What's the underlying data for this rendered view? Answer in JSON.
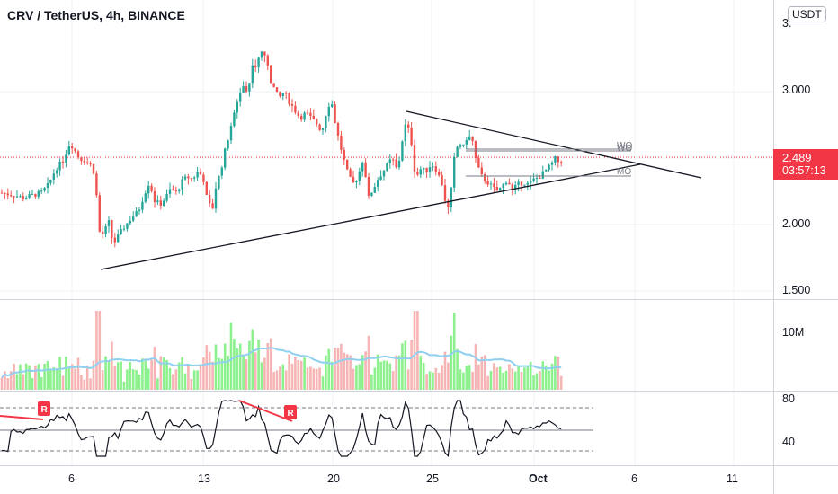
{
  "header": {
    "symbol_title": "CRV / TetherUS, 4h, BINANCE",
    "currency": "USDT"
  },
  "last_price": {
    "price": "2.489",
    "countdown": "03:57:13"
  },
  "colors": {
    "up": "#26a69a",
    "down": "#ef5350",
    "vol_up": "#8cf08c",
    "vol_down": "#f7b4b4",
    "vol_ma": "#8fd0f0",
    "last_line": "#f23645",
    "rsi_div": "#f23645"
  },
  "chart_data": [
    {
      "type": "candlestick",
      "y_ticks": [
        "1.500",
        "2.000",
        "3.000",
        "3."
      ],
      "x_ticks": [
        "6",
        "13",
        "20",
        "25",
        "Oct",
        "6",
        "11"
      ],
      "ylim": [
        1.5,
        3.4
      ],
      "close_series": [
        [
          0,
          2.24
        ],
        [
          8,
          2.23
        ],
        [
          16,
          2.22
        ],
        [
          26,
          2.2
        ],
        [
          36,
          2.22
        ],
        [
          46,
          2.24
        ],
        [
          54,
          2.3
        ],
        [
          62,
          2.42
        ],
        [
          70,
          2.48
        ],
        [
          78,
          2.62
        ],
        [
          82,
          2.57
        ],
        [
          88,
          2.5
        ],
        [
          95,
          2.48
        ],
        [
          102,
          2.44
        ],
        [
          106,
          2.36
        ],
        [
          110,
          1.95
        ],
        [
          116,
          1.92
        ],
        [
          120,
          2.05
        ],
        [
          126,
          1.85
        ],
        [
          130,
          1.9
        ],
        [
          138,
          1.98
        ],
        [
          146,
          2.05
        ],
        [
          154,
          2.1
        ],
        [
          160,
          2.22
        ],
        [
          166,
          2.32
        ],
        [
          172,
          2.18
        ],
        [
          178,
          2.15
        ],
        [
          184,
          2.2
        ],
        [
          190,
          2.27
        ],
        [
          196,
          2.24
        ],
        [
          202,
          2.32
        ],
        [
          208,
          2.36
        ],
        [
          214,
          2.34
        ],
        [
          220,
          2.4
        ],
        [
          226,
          2.35
        ],
        [
          230,
          2.2
        ],
        [
          236,
          2.1
        ],
        [
          240,
          2.28
        ],
        [
          246,
          2.42
        ],
        [
          250,
          2.55
        ],
        [
          256,
          2.7
        ],
        [
          262,
          2.88
        ],
        [
          266,
          2.98
        ],
        [
          270,
          3.05
        ],
        [
          276,
          2.98
        ],
        [
          280,
          3.22
        ],
        [
          285,
          3.18
        ],
        [
          290,
          3.3
        ],
        [
          295,
          3.28
        ],
        [
          300,
          3.1
        ],
        [
          305,
          3.02
        ],
        [
          310,
          2.95
        ],
        [
          316,
          3.0
        ],
        [
          322,
          2.92
        ],
        [
          328,
          2.86
        ],
        [
          334,
          2.8
        ],
        [
          340,
          2.84
        ],
        [
          346,
          2.8
        ],
        [
          352,
          2.76
        ],
        [
          358,
          2.7
        ],
        [
          362,
          2.82
        ],
        [
          368,
          2.95
        ],
        [
          374,
          2.72
        ],
        [
          380,
          2.55
        ],
        [
          386,
          2.4
        ],
        [
          392,
          2.3
        ],
        [
          398,
          2.36
        ],
        [
          404,
          2.5
        ],
        [
          410,
          2.2
        ],
        [
          416,
          2.28
        ],
        [
          420,
          2.34
        ],
        [
          428,
          2.42
        ],
        [
          436,
          2.5
        ],
        [
          442,
          2.4
        ],
        [
          448,
          2.66
        ],
        [
          452,
          2.78
        ],
        [
          458,
          2.6
        ],
        [
          462,
          2.35
        ],
        [
          468,
          2.42
        ],
        [
          474,
          2.4
        ],
        [
          480,
          2.46
        ],
        [
          486,
          2.4
        ],
        [
          492,
          2.3
        ],
        [
          496,
          2.15
        ],
        [
          500,
          2.1
        ],
        [
          504,
          2.46
        ],
        [
          510,
          2.62
        ],
        [
          516,
          2.58
        ],
        [
          520,
          2.68
        ],
        [
          526,
          2.62
        ],
        [
          530,
          2.45
        ],
        [
          536,
          2.36
        ],
        [
          542,
          2.32
        ],
        [
          548,
          2.28
        ],
        [
          552,
          2.25
        ],
        [
          558,
          2.28
        ],
        [
          564,
          2.34
        ],
        [
          570,
          2.26
        ],
        [
          576,
          2.3
        ],
        [
          582,
          2.32
        ],
        [
          588,
          2.3
        ],
        [
          594,
          2.34
        ],
        [
          600,
          2.36
        ],
        [
          606,
          2.4
        ],
        [
          612,
          2.44
        ],
        [
          618,
          2.5
        ],
        [
          622,
          2.46
        ],
        [
          626,
          2.49
        ]
      ],
      "overlay_labels": [
        "WO",
        "WO",
        "MO"
      ],
      "panes": {
        "volume": {
          "tick": "10M"
        },
        "rsi": {
          "ticks": [
            "80",
            "40"
          ],
          "divergence_label": "R"
        }
      }
    }
  ]
}
